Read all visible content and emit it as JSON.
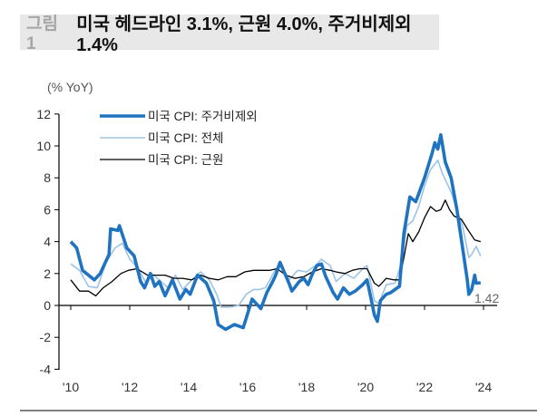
{
  "header": {
    "figure_label": "그림1",
    "title": "미국 헤드라인 3.1%, 근원 4.0%, 주거비제외 1.4%"
  },
  "chart_data": {
    "type": "line",
    "title": "미국 헤드라인 3.1%, 근원 4.0%, 주거비제외 1.4%",
    "ylabel": "(% YoY)",
    "xlabel": "",
    "ylim": [
      -4,
      12
    ],
    "xlim": [
      2010,
      2024
    ],
    "y_ticks": [
      "12",
      "10",
      "8",
      "6",
      "4",
      "2",
      "0",
      "-2",
      "-4"
    ],
    "y_tick_values": [
      12,
      10,
      8,
      6,
      4,
      2,
      0,
      -2,
      -4
    ],
    "x_ticks": [
      "'10",
      "'12",
      "'14",
      "'16",
      "'18",
      "'20",
      "'22",
      "'24"
    ],
    "x_tick_values": [
      2010,
      2012,
      2014,
      2016,
      2018,
      2020,
      2022,
      2024
    ],
    "grid": false,
    "legend_position": "top-left",
    "annotation": {
      "text": "1.42",
      "x": 2023.9,
      "y": 1.42
    },
    "series": [
      {
        "name": "미국 CPI: 주거비제외",
        "color": "#1f73c1",
        "x": [
          2010.0,
          2010.2,
          2010.4,
          2010.8,
          2011.0,
          2011.3,
          2011.35,
          2011.6,
          2011.65,
          2011.9,
          2012.15,
          2012.37,
          2012.5,
          2012.7,
          2012.85,
          2013.0,
          2013.2,
          2013.45,
          2013.7,
          2013.9,
          2014.05,
          2014.3,
          2014.6,
          2014.85,
          2015.0,
          2015.25,
          2015.55,
          2015.85,
          2015.95,
          2016.15,
          2016.3,
          2016.45,
          2016.65,
          2016.85,
          2016.95,
          2017.1,
          2017.4,
          2017.5,
          2017.75,
          2017.9,
          2018.05,
          2018.2,
          2018.35,
          2018.5,
          2018.65,
          2018.9,
          2019.05,
          2019.25,
          2019.45,
          2019.65,
          2019.9,
          2020.05,
          2020.2,
          2020.3,
          2020.4,
          2020.5,
          2020.7,
          2020.85,
          2021.0,
          2021.15,
          2021.3,
          2021.5,
          2021.7,
          2022.0,
          2022.25,
          2022.35,
          2022.45,
          2022.55,
          2022.7,
          2022.9,
          2023.1,
          2023.3,
          2023.45,
          2023.5,
          2023.6,
          2023.7,
          2023.75,
          2023.9
        ],
        "y": [
          4.0,
          3.6,
          2.2,
          1.6,
          2.0,
          3.2,
          4.8,
          4.7,
          5.0,
          3.6,
          3.1,
          1.5,
          1.1,
          2.0,
          1.2,
          1.5,
          0.6,
          1.6,
          0.4,
          1.0,
          0.7,
          1.9,
          1.4,
          0.3,
          -1.2,
          -1.5,
          -1.2,
          -1.4,
          -0.8,
          0.4,
          0.1,
          -0.2,
          0.8,
          1.5,
          1.9,
          2.7,
          1.4,
          0.9,
          1.5,
          1.7,
          1.3,
          2.0,
          2.5,
          2.6,
          1.8,
          0.8,
          0.4,
          1.1,
          0.7,
          0.9,
          1.3,
          1.6,
          0.3,
          -0.6,
          -1.0,
          0.3,
          0.7,
          0.8,
          1.0,
          1.2,
          4.5,
          6.8,
          6.5,
          8.0,
          9.5,
          10.2,
          9.8,
          10.7,
          9.0,
          8.0,
          6.0,
          3.5,
          1.6,
          0.7,
          1.0,
          1.9,
          1.4,
          1.42
        ]
      },
      {
        "name": "미국 CPI: 전체",
        "color": "#9dc3e6",
        "x": [
          2010.0,
          2010.3,
          2010.6,
          2010.9,
          2011.2,
          2011.5,
          2011.75,
          2012.0,
          2012.3,
          2012.55,
          2012.75,
          2013.0,
          2013.3,
          2013.55,
          2013.8,
          2014.1,
          2014.4,
          2014.7,
          2014.95,
          2015.1,
          2015.4,
          2015.7,
          2015.95,
          2016.2,
          2016.4,
          2016.6,
          2016.9,
          2017.1,
          2017.4,
          2017.7,
          2018.0,
          2018.3,
          2018.5,
          2018.8,
          2019.0,
          2019.3,
          2019.6,
          2019.9,
          2020.05,
          2020.3,
          2020.45,
          2020.7,
          2021.0,
          2021.2,
          2021.4,
          2021.6,
          2021.8,
          2022.0,
          2022.2,
          2022.45,
          2022.6,
          2022.9,
          2023.1,
          2023.3,
          2023.5,
          2023.6,
          2023.75,
          2023.9
        ],
        "y": [
          2.6,
          2.2,
          1.2,
          1.1,
          2.7,
          3.6,
          3.9,
          2.9,
          2.3,
          1.4,
          2.0,
          1.6,
          1.1,
          1.9,
          1.0,
          1.6,
          2.1,
          1.6,
          0.7,
          -0.1,
          -0.1,
          0.0,
          0.7,
          1.0,
          1.0,
          1.1,
          2.1,
          2.7,
          1.6,
          2.2,
          2.1,
          2.5,
          2.9,
          2.5,
          1.5,
          2.0,
          1.7,
          2.3,
          2.5,
          0.3,
          0.1,
          1.3,
          1.4,
          2.6,
          5.0,
          5.3,
          6.2,
          7.5,
          8.5,
          9.1,
          8.3,
          7.1,
          6.0,
          4.9,
          3.0,
          3.2,
          3.7,
          3.1
        ]
      },
      {
        "name": "미국 CPI: 근원",
        "color": "#000000",
        "x": [
          2010.0,
          2010.3,
          2010.6,
          2010.85,
          2011.1,
          2011.4,
          2011.7,
          2011.95,
          2012.25,
          2012.6,
          2012.9,
          2013.2,
          2013.5,
          2013.8,
          2014.1,
          2014.4,
          2014.7,
          2015.0,
          2015.3,
          2015.6,
          2015.9,
          2016.2,
          2016.5,
          2016.75,
          2017.0,
          2017.3,
          2017.6,
          2017.9,
          2018.2,
          2018.5,
          2018.8,
          2019.0,
          2019.3,
          2019.55,
          2019.8,
          2020.05,
          2020.3,
          2020.45,
          2020.7,
          2020.95,
          2021.15,
          2021.3,
          2021.45,
          2021.6,
          2021.8,
          2022.0,
          2022.2,
          2022.4,
          2022.55,
          2022.7,
          2022.85,
          2023.0,
          2023.25,
          2023.45,
          2023.7,
          2023.9
        ],
        "y": [
          1.6,
          0.9,
          0.9,
          0.6,
          1.1,
          1.5,
          2.0,
          2.2,
          2.3,
          1.9,
          1.9,
          1.9,
          1.7,
          1.7,
          1.6,
          1.9,
          1.7,
          1.6,
          1.8,
          1.8,
          2.1,
          2.2,
          2.2,
          2.2,
          2.3,
          1.9,
          1.7,
          1.8,
          2.1,
          2.3,
          2.2,
          2.1,
          2.0,
          2.2,
          2.3,
          2.3,
          1.4,
          1.2,
          1.7,
          1.6,
          1.6,
          3.0,
          4.5,
          4.0,
          4.6,
          5.5,
          6.2,
          5.9,
          6.0,
          6.6,
          6.0,
          5.6,
          5.4,
          4.8,
          4.1,
          4.0
        ]
      }
    ]
  }
}
